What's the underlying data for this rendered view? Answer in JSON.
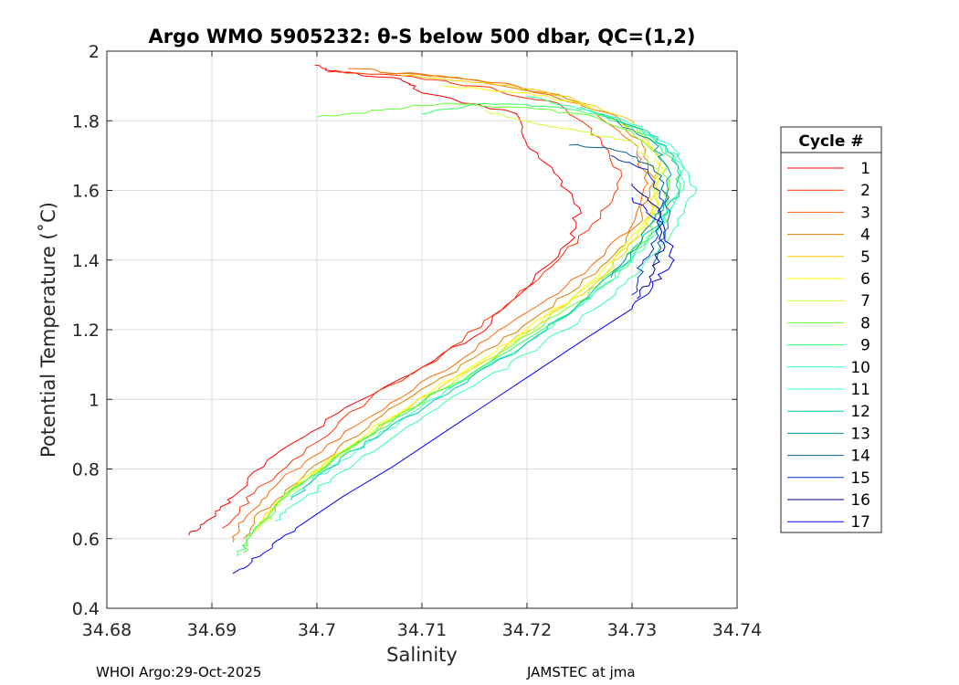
{
  "colors": {
    "axis": "#262626",
    "grid": "#dcdcdc",
    "background": "#ffffff",
    "cycles": [
      "#ff0000",
      "#ff3300",
      "#ff6600",
      "#e08000",
      "#ffcc00",
      "#ffff00",
      "#ccff33",
      "#66ff33",
      "#33ff66",
      "#33ffaa",
      "#33ffcc",
      "#00ccaa",
      "#009999",
      "#006699",
      "#0033cc",
      "#000099",
      "#0000ff"
    ]
  },
  "footer": {
    "left": "WHOI Argo:29-Oct-2025",
    "right": "JAMSTEC at jma"
  },
  "chart_data": {
    "type": "line",
    "title": "Argo WMO 5905232: θ-S below 500 dbar,  QC=(1,2)",
    "xlabel": "Salinity",
    "ylabel": "Potential Temperature (˚C)",
    "xlim": [
      34.68,
      34.74
    ],
    "ylim": [
      0.4,
      2.0
    ],
    "xticks": [
      34.68,
      34.69,
      34.7,
      34.71,
      34.72,
      34.73,
      34.74
    ],
    "yticks": [
      0.4,
      0.6,
      0.8,
      1.0,
      1.2,
      1.4,
      1.6,
      1.8,
      2.0
    ],
    "xtick_labels": [
      "34.68",
      "34.69",
      "34.7",
      "34.71",
      "34.72",
      "34.73",
      "34.74"
    ],
    "ytick_labels": [
      "0.4",
      "0.6",
      "0.8",
      "1",
      "1.2",
      "1.4",
      "1.6",
      "1.8",
      "2"
    ],
    "grid": true,
    "legend": {
      "title": "Cycle #",
      "placement": "outside-right"
    },
    "series": [
      {
        "name": "1",
        "points": [
          [
            34.6998,
            1.96
          ],
          [
            34.702,
            1.94
          ],
          [
            34.708,
            1.92
          ],
          [
            34.71,
            1.88
          ],
          [
            34.719,
            1.82
          ],
          [
            34.72,
            1.73
          ],
          [
            34.723,
            1.64
          ],
          [
            34.725,
            1.55
          ],
          [
            34.724,
            1.45
          ],
          [
            34.72,
            1.32
          ],
          [
            34.715,
            1.18
          ],
          [
            34.708,
            1.06
          ],
          [
            34.702,
            0.96
          ],
          [
            34.696,
            0.84
          ],
          [
            34.692,
            0.72
          ],
          [
            34.69,
            0.66
          ],
          [
            34.6878,
            0.61
          ]
        ]
      },
      {
        "name": "2",
        "points": [
          [
            34.701,
            1.94
          ],
          [
            34.708,
            1.93
          ],
          [
            34.715,
            1.9
          ],
          [
            34.723,
            1.85
          ],
          [
            34.727,
            1.75
          ],
          [
            34.729,
            1.64
          ],
          [
            34.727,
            1.52
          ],
          [
            34.723,
            1.4
          ],
          [
            34.718,
            1.27
          ],
          [
            34.712,
            1.13
          ],
          [
            34.705,
            1.0
          ],
          [
            34.699,
            0.86
          ],
          [
            34.694,
            0.73
          ],
          [
            34.691,
            0.63
          ]
        ]
      },
      {
        "name": "3",
        "points": [
          [
            34.703,
            1.95
          ],
          [
            34.711,
            1.93
          ],
          [
            34.719,
            1.9
          ],
          [
            34.726,
            1.84
          ],
          [
            34.73,
            1.74
          ],
          [
            34.7315,
            1.62
          ],
          [
            34.73,
            1.5
          ],
          [
            34.726,
            1.38
          ],
          [
            34.72,
            1.25
          ],
          [
            34.714,
            1.12
          ],
          [
            34.707,
            0.99
          ],
          [
            34.701,
            0.87
          ],
          [
            34.696,
            0.75
          ],
          [
            34.693,
            0.65
          ],
          [
            34.692,
            0.59
          ]
        ]
      },
      {
        "name": "4",
        "points": [
          [
            34.706,
            1.94
          ],
          [
            34.714,
            1.92
          ],
          [
            34.722,
            1.88
          ],
          [
            34.728,
            1.82
          ],
          [
            34.731,
            1.73
          ],
          [
            34.732,
            1.62
          ],
          [
            34.7305,
            1.5
          ],
          [
            34.727,
            1.38
          ],
          [
            34.7215,
            1.25
          ],
          [
            34.715,
            1.12
          ],
          [
            34.708,
            0.99
          ],
          [
            34.702,
            0.86
          ],
          [
            34.697,
            0.74
          ],
          [
            34.694,
            0.65
          ],
          [
            34.693,
            0.6
          ]
        ]
      },
      {
        "name": "5",
        "points": [
          [
            34.708,
            1.93
          ],
          [
            34.716,
            1.91
          ],
          [
            34.724,
            1.87
          ],
          [
            34.73,
            1.8
          ],
          [
            34.7325,
            1.7
          ],
          [
            34.7325,
            1.6
          ],
          [
            34.731,
            1.48
          ],
          [
            34.7275,
            1.36
          ],
          [
            34.722,
            1.23
          ],
          [
            34.716,
            1.11
          ],
          [
            34.709,
            0.98
          ],
          [
            34.703,
            0.86
          ],
          [
            34.6975,
            0.74
          ],
          [
            34.6945,
            0.64
          ]
        ]
      },
      {
        "name": "6",
        "points": [
          [
            34.712,
            1.9
          ],
          [
            34.72,
            1.88
          ],
          [
            34.726,
            1.84
          ],
          [
            34.731,
            1.76
          ],
          [
            34.733,
            1.66
          ],
          [
            34.732,
            1.55
          ],
          [
            34.729,
            1.43
          ],
          [
            34.725,
            1.31
          ],
          [
            34.7195,
            1.19
          ],
          [
            34.713,
            1.06
          ],
          [
            34.7065,
            0.94
          ],
          [
            34.7005,
            0.81
          ],
          [
            34.696,
            0.7
          ],
          [
            34.694,
            0.62
          ]
        ]
      },
      {
        "name": "7",
        "points": [
          [
            34.716,
            1.83
          ],
          [
            34.721,
            1.79
          ],
          [
            34.725,
            1.77
          ],
          [
            34.73,
            1.74
          ],
          [
            34.7325,
            1.66
          ],
          [
            34.7325,
            1.56
          ],
          [
            34.73,
            1.45
          ],
          [
            34.726,
            1.33
          ],
          [
            34.7205,
            1.2
          ],
          [
            34.714,
            1.07
          ],
          [
            34.7075,
            0.95
          ],
          [
            34.701,
            0.82
          ],
          [
            34.6965,
            0.71
          ],
          [
            34.6945,
            0.62
          ]
        ]
      },
      {
        "name": "8",
        "points": [
          [
            34.7,
            1.81
          ],
          [
            34.706,
            1.83
          ],
          [
            34.712,
            1.85
          ],
          [
            34.718,
            1.84
          ],
          [
            34.725,
            1.82
          ],
          [
            34.73,
            1.77
          ],
          [
            34.733,
            1.68
          ],
          [
            34.7335,
            1.57
          ],
          [
            34.731,
            1.45
          ],
          [
            34.727,
            1.33
          ],
          [
            34.7215,
            1.21
          ],
          [
            34.715,
            1.08
          ],
          [
            34.708,
            0.96
          ],
          [
            34.7015,
            0.83
          ],
          [
            34.6965,
            0.71
          ],
          [
            34.6935,
            0.6
          ],
          [
            34.693,
            0.56
          ]
        ]
      },
      {
        "name": "9",
        "points": [
          [
            34.71,
            1.82
          ],
          [
            34.716,
            1.85
          ],
          [
            34.722,
            1.84
          ],
          [
            34.728,
            1.81
          ],
          [
            34.732,
            1.75
          ],
          [
            34.7345,
            1.66
          ],
          [
            34.734,
            1.56
          ],
          [
            34.7315,
            1.45
          ],
          [
            34.7275,
            1.33
          ],
          [
            34.722,
            1.21
          ],
          [
            34.7155,
            1.09
          ],
          [
            34.7085,
            0.96
          ],
          [
            34.702,
            0.84
          ],
          [
            34.697,
            0.72
          ],
          [
            34.694,
            0.62
          ],
          [
            34.6925,
            0.55
          ]
        ]
      },
      {
        "name": "10",
        "points": [
          [
            34.72,
            1.87
          ],
          [
            34.726,
            1.83
          ],
          [
            34.731,
            1.77
          ],
          [
            34.7345,
            1.69
          ],
          [
            34.736,
            1.59
          ],
          [
            34.734,
            1.49
          ],
          [
            34.731,
            1.38
          ],
          [
            34.727,
            1.27
          ],
          [
            34.7215,
            1.16
          ],
          [
            34.715,
            1.04
          ],
          [
            34.7085,
            0.92
          ],
          [
            34.703,
            0.8
          ],
          [
            34.6985,
            0.71
          ],
          [
            34.696,
            0.65
          ]
        ]
      },
      {
        "name": "11",
        "points": [
          [
            34.725,
            1.84
          ],
          [
            34.73,
            1.79
          ],
          [
            34.734,
            1.72
          ],
          [
            34.735,
            1.62
          ],
          [
            34.733,
            1.51
          ],
          [
            34.73,
            1.4
          ],
          [
            34.726,
            1.29
          ],
          [
            34.721,
            1.18
          ],
          [
            34.7145,
            1.06
          ],
          [
            34.708,
            0.94
          ],
          [
            34.702,
            0.82
          ],
          [
            34.6975,
            0.72
          ]
        ]
      },
      {
        "name": "12",
        "points": [
          [
            34.727,
            1.82
          ],
          [
            34.7315,
            1.77
          ],
          [
            34.734,
            1.7
          ],
          [
            34.7345,
            1.6
          ],
          [
            34.732,
            1.49
          ],
          [
            34.7285,
            1.37
          ],
          [
            34.7245,
            1.26
          ],
          [
            34.7195,
            1.15
          ],
          [
            34.713,
            1.03
          ],
          [
            34.7065,
            0.91
          ],
          [
            34.701,
            0.8
          ],
          [
            34.6975,
            0.71
          ]
        ]
      },
      {
        "name": "13",
        "points": [
          [
            34.7285,
            1.8
          ],
          [
            34.732,
            1.74
          ],
          [
            34.7335,
            1.66
          ],
          [
            34.733,
            1.56
          ],
          [
            34.731,
            1.46
          ],
          [
            34.728,
            1.35
          ]
        ]
      },
      {
        "name": "14",
        "points": [
          [
            34.724,
            1.73
          ],
          [
            34.728,
            1.72
          ],
          [
            34.732,
            1.67
          ],
          [
            34.7335,
            1.58
          ],
          [
            34.733,
            1.48
          ],
          [
            34.732,
            1.38
          ]
        ]
      },
      {
        "name": "15",
        "points": [
          [
            34.728,
            1.7
          ],
          [
            34.7315,
            1.66
          ],
          [
            34.733,
            1.57
          ],
          [
            34.7325,
            1.47
          ],
          [
            34.731,
            1.39
          ],
          [
            34.73,
            1.3
          ]
        ]
      },
      {
        "name": "16",
        "points": [
          [
            34.73,
            1.62
          ],
          [
            34.7325,
            1.55
          ],
          [
            34.733,
            1.45
          ],
          [
            34.732,
            1.36
          ],
          [
            34.7305,
            1.29
          ]
        ]
      },
      {
        "name": "17",
        "points": [
          [
            34.73,
            1.58
          ],
          [
            34.733,
            1.5
          ],
          [
            34.734,
            1.4
          ],
          [
            34.732,
            1.33
          ],
          [
            34.73,
            1.26
          ],
          [
            34.698,
            0.63
          ],
          [
            34.695,
            0.56
          ],
          [
            34.692,
            0.5
          ]
        ]
      }
    ]
  }
}
